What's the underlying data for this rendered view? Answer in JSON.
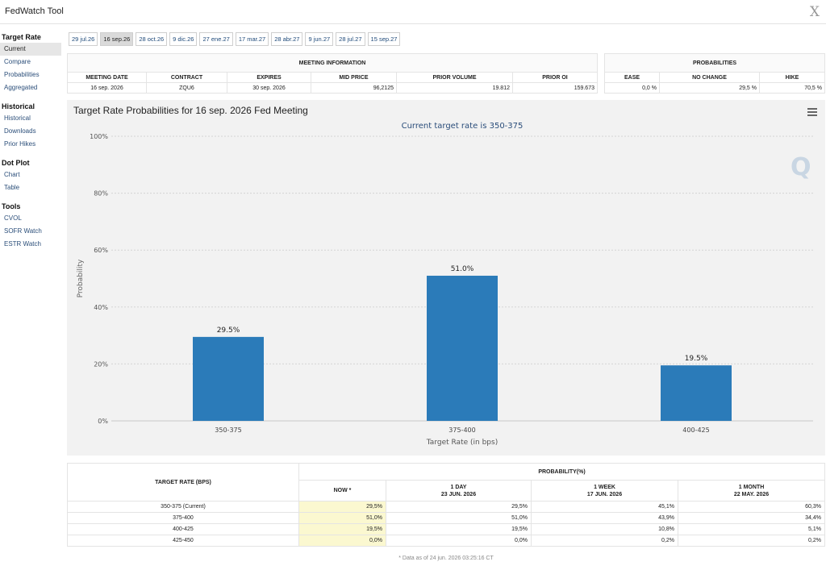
{
  "app": {
    "title": "FedWatch Tool",
    "close": "X"
  },
  "sidebar": [
    {
      "title": "Target Rate",
      "items": [
        {
          "label": "Current",
          "active": true
        },
        {
          "label": "Compare"
        },
        {
          "label": "Probabilities"
        },
        {
          "label": "Aggregated"
        }
      ]
    },
    {
      "title": "Historical",
      "items": [
        {
          "label": "Historical"
        },
        {
          "label": "Downloads"
        },
        {
          "label": "Prior Hikes"
        }
      ]
    },
    {
      "title": "Dot Plot",
      "items": [
        {
          "label": "Chart"
        },
        {
          "label": "Table"
        }
      ]
    },
    {
      "title": "Tools",
      "items": [
        {
          "label": "CVOL"
        },
        {
          "label": "SOFR Watch"
        },
        {
          "label": "ESTR Watch"
        }
      ]
    }
  ],
  "tabs": [
    "29 jul.26",
    "16 sep.26",
    "28 oct.26",
    "9 dic.26",
    "27 ene.27",
    "17 mar.27",
    "28 abr.27",
    "9 jun.27",
    "28 jul.27",
    "15 sep.27"
  ],
  "active_tab": 1,
  "meeting_info": {
    "title": "MEETING INFORMATION",
    "headers": [
      "MEETING DATE",
      "CONTRACT",
      "EXPIRES",
      "MID PRICE",
      "PRIOR VOLUME",
      "PRIOR OI"
    ],
    "row": [
      "16 sep. 2026",
      "ZQU6",
      "30 sep. 2026",
      "96,2125",
      "19.812",
      "159.673"
    ]
  },
  "probabilities": {
    "title": "PROBABILITIES",
    "headers": [
      "EASE",
      "NO CHANGE",
      "HIKE"
    ],
    "row": [
      "0,0 %",
      "29,5 %",
      "70,5 %"
    ]
  },
  "chart": {
    "title": "Target Rate Probabilities for 16 sep. 2026 Fed Meeting",
    "subtitle": "Current target rate is 350-375",
    "logo": "Q"
  },
  "chart_data": {
    "type": "bar",
    "title": "Target Rate Probabilities for 16 sep. 2026 Fed Meeting",
    "subtitle": "Current target rate is 350-375",
    "categories": [
      "350-375",
      "375-400",
      "400-425"
    ],
    "values": [
      29.5,
      51.0,
      19.5
    ],
    "data_labels": [
      "29.5%",
      "51.0%",
      "19.5%"
    ],
    "xlabel": "Target Rate (in bps)",
    "ylabel": "Probability",
    "ylim": [
      0,
      100
    ],
    "yticks": [
      0,
      20,
      40,
      60,
      80,
      100
    ],
    "ytick_labels": [
      "0%",
      "20%",
      "40%",
      "60%",
      "80%",
      "100%"
    ],
    "grid": true,
    "bar_color": "#2b7bb9"
  },
  "prob_table": {
    "col0_header": "TARGET RATE (BPS)",
    "group_header": "PROBABILITY(%)",
    "cols": [
      {
        "l1": "NOW *",
        "l2": ""
      },
      {
        "l1": "1 DAY",
        "l2": "23 JUN. 2026"
      },
      {
        "l1": "1 WEEK",
        "l2": "17 JUN. 2026"
      },
      {
        "l1": "1 MONTH",
        "l2": "22 MAY. 2026"
      }
    ],
    "rows": [
      [
        "350-375 (Current)",
        "29,5%",
        "29,5%",
        "45,1%",
        "60,3%"
      ],
      [
        "375-400",
        "51,0%",
        "51,0%",
        "43,9%",
        "34,4%"
      ],
      [
        "400-425",
        "19,5%",
        "19,5%",
        "10,8%",
        "5,1%"
      ],
      [
        "425-450",
        "0,0%",
        "0,0%",
        "0,2%",
        "0,2%"
      ]
    ],
    "footnote": "* Data as of 24 jun. 2026 03:25:16 CT"
  }
}
